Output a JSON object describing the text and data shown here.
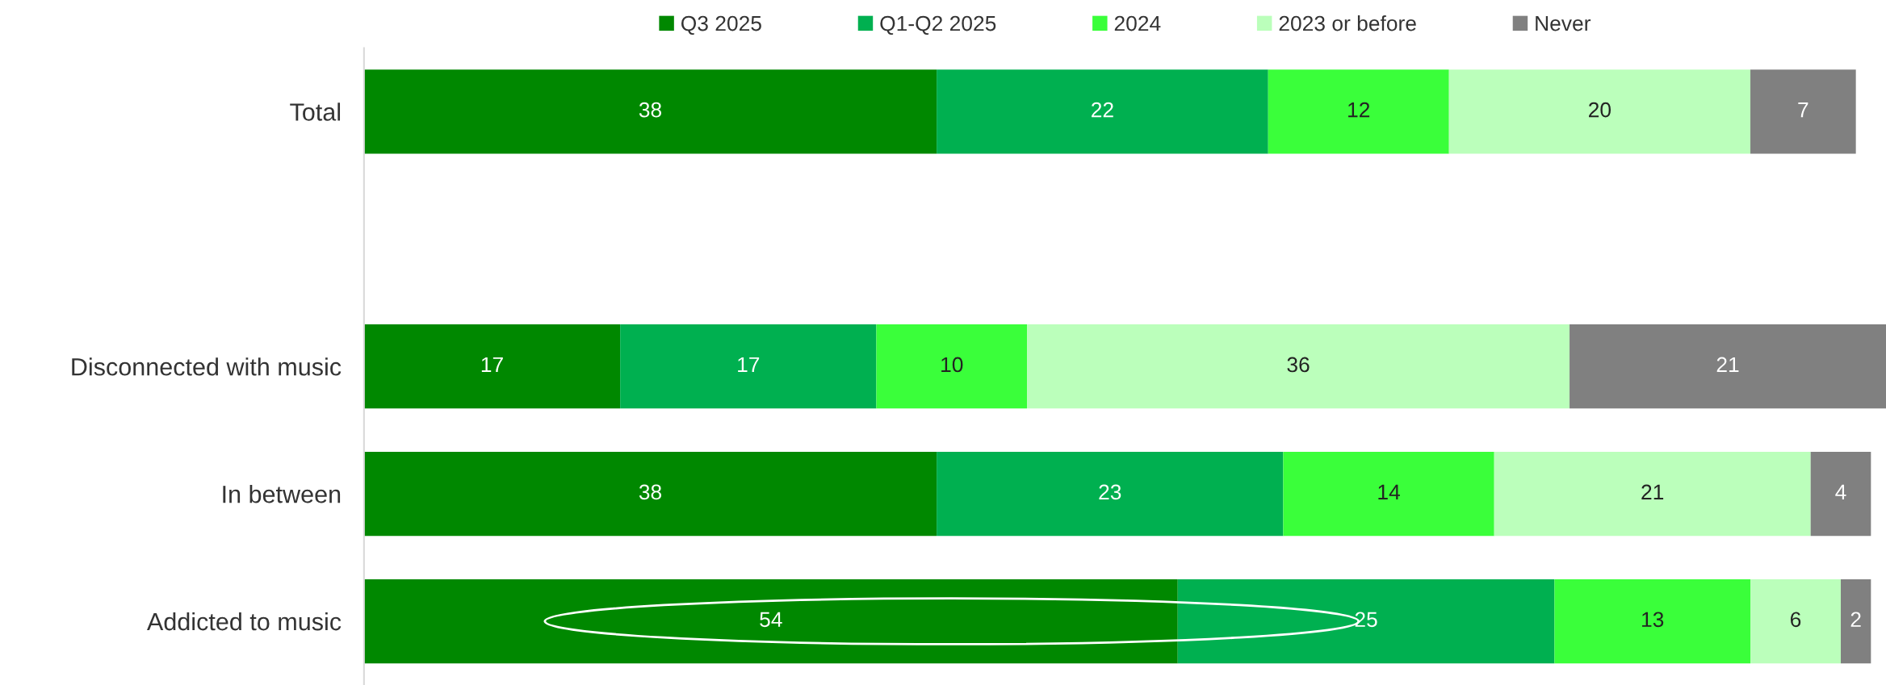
{
  "chart_data": {
    "type": "bar",
    "orientation": "horizontal",
    "stacked": true,
    "data_labels": true,
    "legend": "top",
    "grid": false,
    "tick_labels": "y",
    "categories": [
      "Total",
      null,
      "Disconnected with music",
      "In between",
      "Addicted to music"
    ],
    "series": [
      {
        "name": "Q3 2025",
        "color": "#008800",
        "values": [
          38,
          null,
          17,
          38,
          54
        ]
      },
      {
        "name": "Q1-Q2 2025",
        "color": "#00b050",
        "values": [
          22,
          null,
          17,
          23,
          25
        ]
      },
      {
        "name": "2024",
        "color": "#3aff3a",
        "values": [
          12,
          null,
          10,
          14,
          13
        ]
      },
      {
        "name": "2023 or before",
        "color": "#bbffbb",
        "values": [
          20,
          null,
          36,
          21,
          6
        ]
      },
      {
        "name": "Never",
        "color": "#808080",
        "values": [
          7,
          null,
          21,
          4,
          2
        ]
      }
    ]
  }
}
